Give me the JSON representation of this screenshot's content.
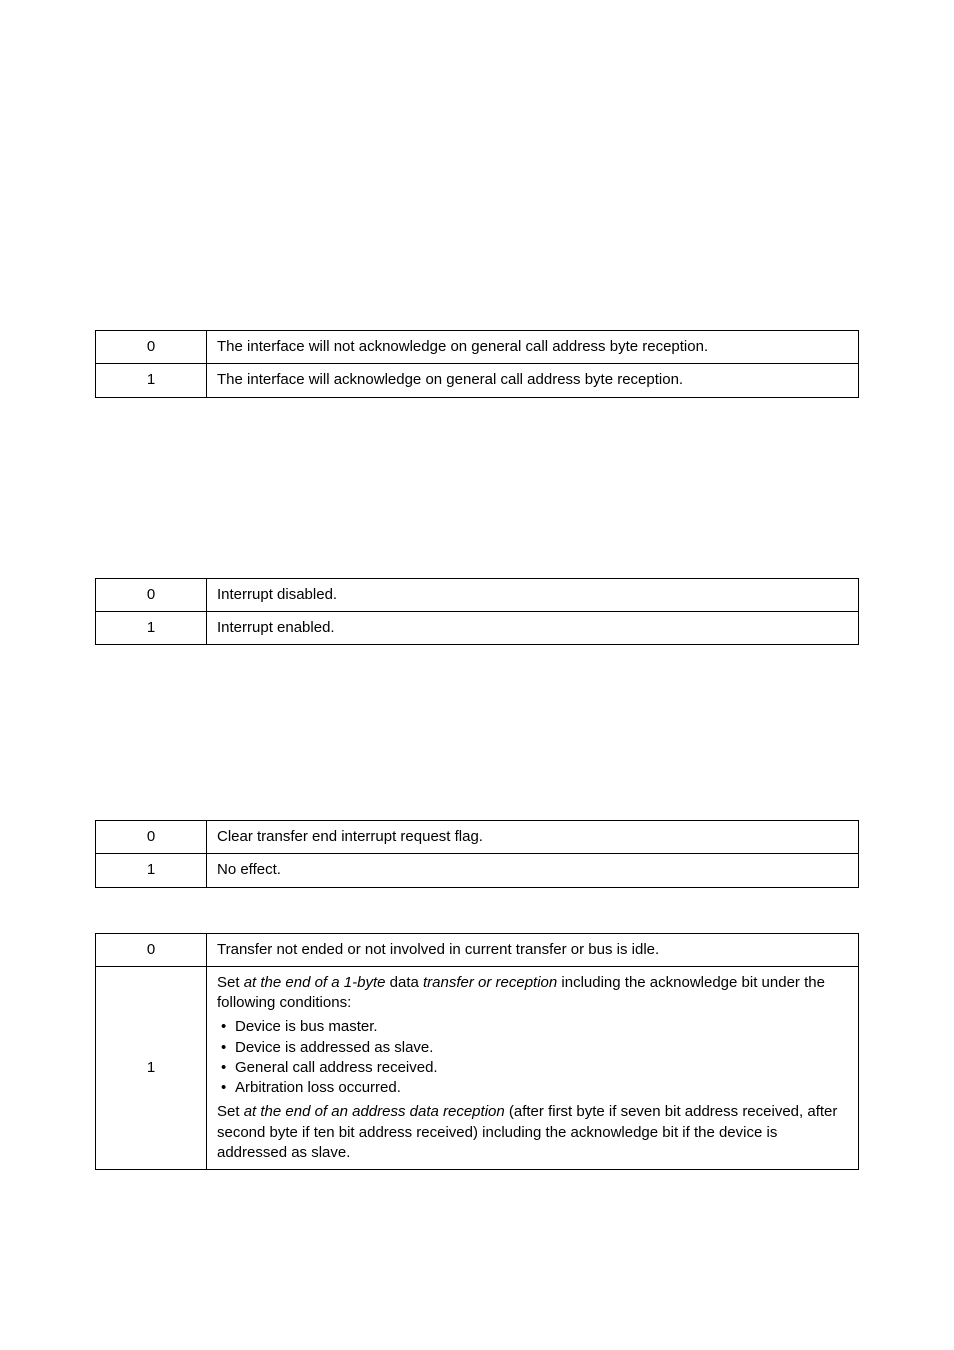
{
  "tables": {
    "t1": {
      "rows": [
        {
          "val": "0",
          "desc": "The interface will not acknowledge on general call address byte reception."
        },
        {
          "val": "1",
          "desc": "The interface will acknowledge on general call address byte reception."
        }
      ]
    },
    "t2": {
      "rows": [
        {
          "val": "0",
          "desc": "Interrupt disabled."
        },
        {
          "val": "1",
          "desc": "Interrupt enabled."
        }
      ]
    },
    "t3": {
      "rows": [
        {
          "val": "0",
          "desc": "Clear transfer end interrupt request flag."
        },
        {
          "val": "1",
          "desc": "No effect."
        }
      ]
    },
    "t4": {
      "row0": {
        "val": "0",
        "desc": "Transfer not ended or not involved in current transfer or bus is idle."
      },
      "row1": {
        "val": "1",
        "intro_pre": "Set ",
        "intro_em1": "at the end of a 1-byte",
        "intro_mid": " data ",
        "intro_em2": "transfer or reception",
        "intro_post": " including the acknowledge bit under the following conditions:",
        "bullets": [
          "Device is bus master.",
          "Device is addressed as slave.",
          "General call address received.",
          "Arbitration loss occurred."
        ],
        "tail_pre": "Set ",
        "tail_em": "at the end of an address data reception",
        "tail_post": " (after first byte if seven bit address received, after second byte if ten bit address received) including the acknowledge bit if the device is addressed as slave."
      }
    }
  }
}
